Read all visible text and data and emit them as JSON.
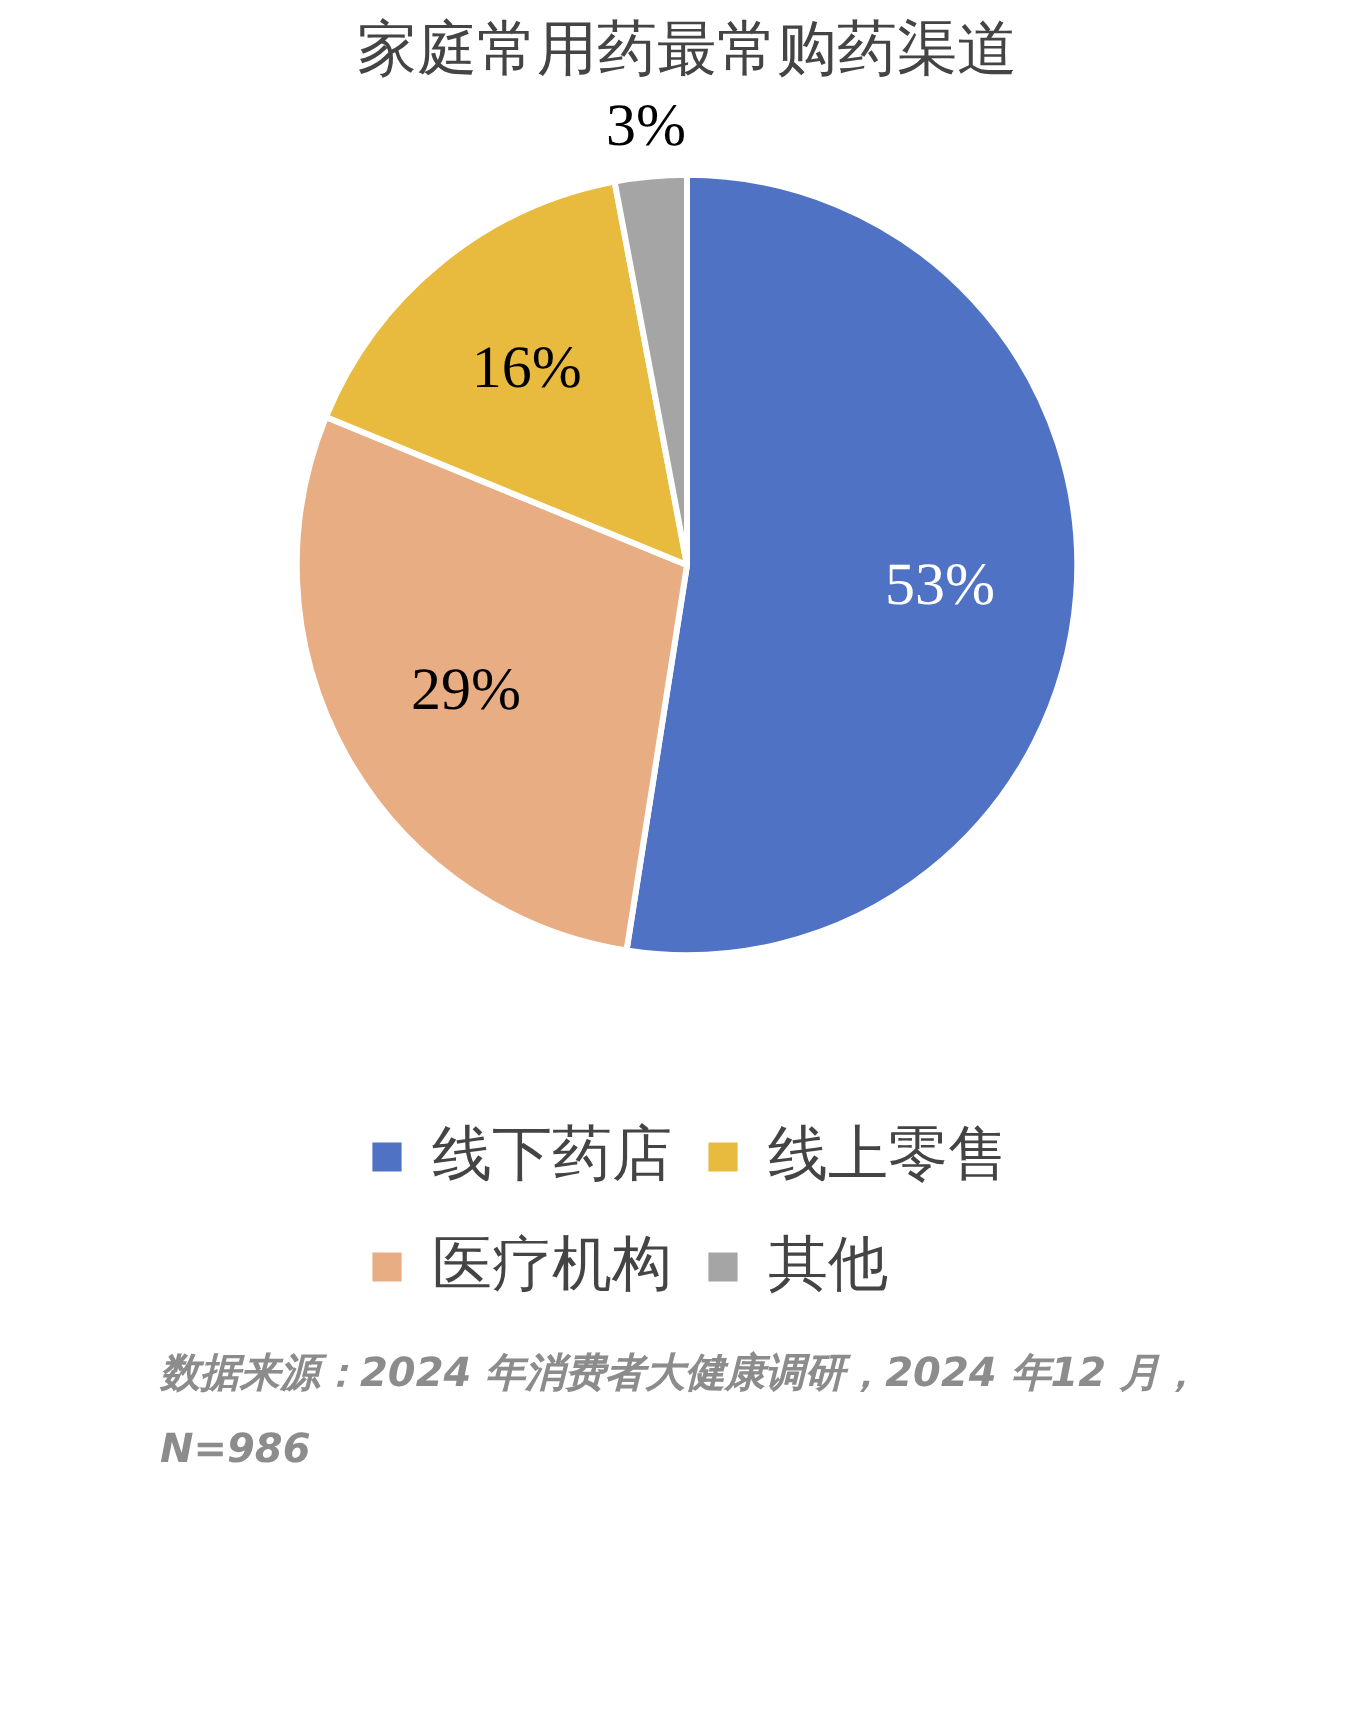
{
  "chart_data": {
    "type": "pie",
    "title": "家庭常用药最常购药渠道",
    "categories": [
      "线下药店",
      "医疗机构",
      "线上零售",
      "其他"
    ],
    "values": [
      53,
      29,
      16,
      3
    ],
    "colors": [
      "#4f72c4",
      "#e9ad84",
      "#e8bb3f",
      "#a5a5a5"
    ],
    "value_labels": [
      "53%",
      "29%",
      "16%",
      "3%"
    ],
    "legend": "bottom",
    "annotations": [
      "数据来源：2024 年消费者大健康调研，2024 年12 月，N=986"
    ]
  }
}
